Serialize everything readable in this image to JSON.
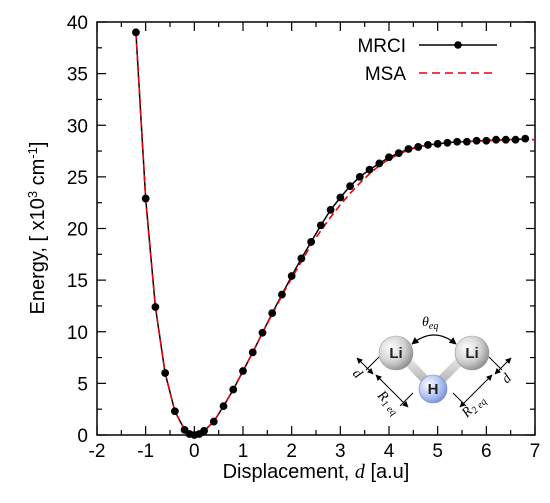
{
  "chart_data": {
    "type": "line",
    "xlabel_prefix": "Displacement, ",
    "xlabel_var": "d",
    "xlabel_suffix": " [a.u]",
    "ylabel_main": "Energy, [ x10",
    "ylabel_exp": "3",
    "ylabel_unit": " cm",
    "ylabel_unit_exp": "-1",
    "ylabel_close": "]",
    "xlim": [
      -2,
      7
    ],
    "ylim": [
      0,
      40
    ],
    "xticks": [
      "-2",
      "-1.5",
      "-1",
      "-0.5",
      "0",
      "0.5",
      "1",
      "1.5",
      "2",
      "2.5",
      "3",
      "3.5",
      "4",
      "4.5",
      "5",
      "5.5",
      "6",
      "6.5",
      "7"
    ],
    "xtick_labels": [
      "-2",
      "-1",
      "0",
      "1",
      "2",
      "3",
      "4",
      "5",
      "6",
      "7"
    ],
    "yticks": [
      "0",
      "5",
      "10",
      "15",
      "20",
      "25",
      "30",
      "35",
      "40"
    ],
    "legend_position": "top-right",
    "series": [
      {
        "name": "MRCI",
        "style": "solid-line-with-markers",
        "color": "#000000",
        "x": [
          -1.2,
          -1.0,
          -0.8,
          -0.6,
          -0.4,
          -0.2,
          -0.1,
          0.0,
          0.1,
          0.2,
          0.4,
          0.6,
          0.8,
          1.0,
          1.2,
          1.4,
          1.6,
          1.8,
          2.0,
          2.2,
          2.4,
          2.6,
          2.8,
          3.0,
          3.2,
          3.4,
          3.6,
          3.8,
          4.0,
          4.2,
          4.4,
          4.6,
          4.8,
          5.0,
          5.2,
          5.4,
          5.6,
          5.8,
          6.0,
          6.2,
          6.4,
          6.6,
          6.8
        ],
        "y": [
          39.0,
          22.9,
          12.4,
          6.0,
          2.3,
          0.5,
          0.1,
          0.0,
          0.1,
          0.4,
          1.3,
          2.8,
          4.4,
          6.2,
          8.0,
          9.9,
          11.8,
          13.6,
          15.4,
          17.1,
          18.7,
          20.3,
          21.8,
          23.0,
          24.1,
          25.0,
          25.7,
          26.3,
          26.9,
          27.3,
          27.7,
          27.9,
          28.1,
          28.2,
          28.3,
          28.4,
          28.4,
          28.5,
          28.5,
          28.6,
          28.6,
          28.6,
          28.7
        ]
      },
      {
        "name": "MSA",
        "style": "dashed-line",
        "color": "#e8000b",
        "x": [
          -1.2,
          -1.0,
          -0.8,
          -0.6,
          -0.4,
          -0.2,
          0.0,
          0.2,
          0.4,
          0.6,
          0.8,
          1.0,
          1.2,
          1.4,
          1.6,
          1.8,
          2.0,
          2.2,
          2.4,
          2.6,
          2.8,
          3.0,
          3.2,
          3.4,
          3.6,
          3.8,
          4.0,
          4.2,
          4.4,
          4.6,
          4.8,
          5.0,
          5.5,
          6.0,
          6.5,
          7.0
        ],
        "y": [
          39.0,
          22.9,
          12.4,
          6.0,
          2.3,
          0.5,
          0.0,
          0.4,
          1.3,
          2.8,
          4.4,
          6.2,
          8.0,
          9.9,
          11.7,
          13.5,
          15.2,
          16.8,
          18.4,
          19.8,
          21.1,
          22.3,
          23.4,
          24.4,
          25.3,
          26.1,
          26.7,
          27.2,
          27.6,
          27.9,
          28.1,
          28.2,
          28.4,
          28.5,
          28.6,
          28.6
        ]
      }
    ],
    "inset": {
      "atoms": [
        "Li",
        "H",
        "Li"
      ],
      "angle_label": "θ",
      "angle_sub": "eq",
      "r1_label": "R",
      "r1_sub": "1 eq",
      "r2_label": "R",
      "r2_sub": "2 eq",
      "d_label": "d"
    }
  }
}
